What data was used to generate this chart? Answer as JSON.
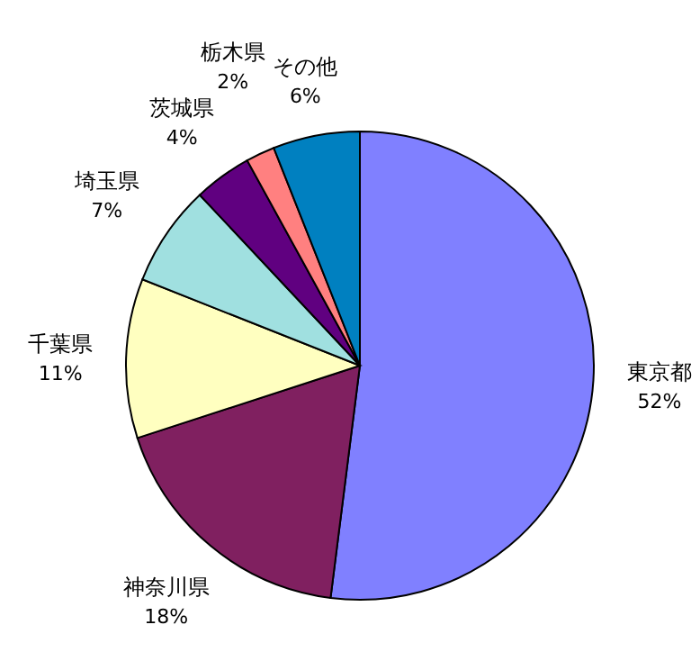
{
  "chart_data": {
    "type": "pie",
    "categories": [
      "東京都",
      "神奈川県",
      "千葉県",
      "埼玉県",
      "茨城県",
      "栃木県",
      "その他"
    ],
    "values": [
      52,
      18,
      11,
      7,
      4,
      2,
      6
    ],
    "value_labels": [
      "52%",
      "18%",
      "11%",
      "7%",
      "4%",
      "2%",
      "6%"
    ],
    "colors": [
      "#8080ff",
      "#802060",
      "#ffffc0",
      "#a0e0e0",
      "#600080",
      "#ff8080",
      "#0080c0"
    ]
  }
}
